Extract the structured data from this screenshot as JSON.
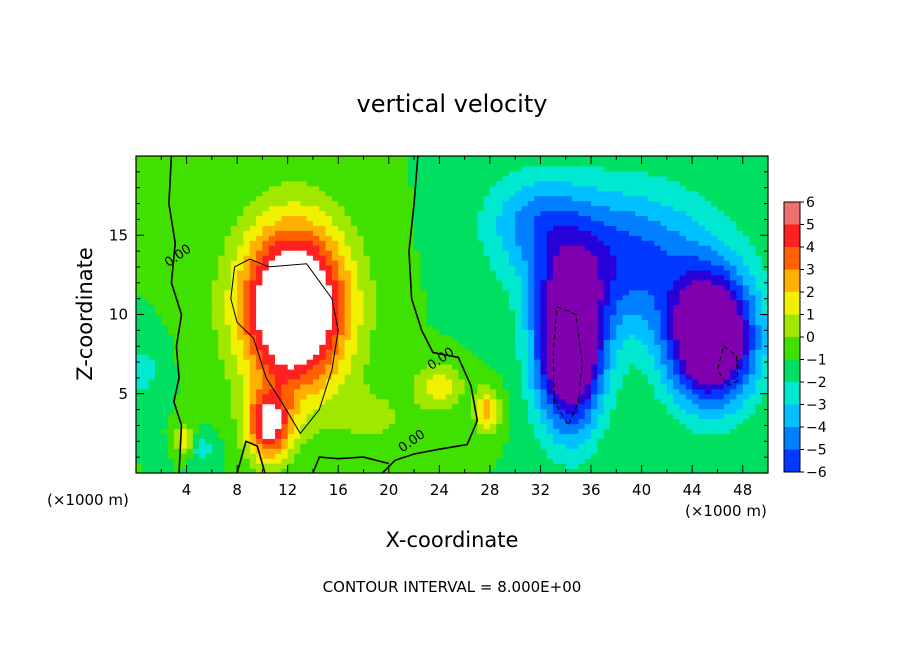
{
  "chart_data": {
    "type": "heatmap",
    "title": "vertical velocity",
    "xlabel": "X-coordinate",
    "ylabel": "Z-coordinate",
    "x_unit": "(×1000 m)",
    "y_unit": "(×1000 m)",
    "x_ticks": [
      "4",
      "8",
      "12",
      "16",
      "20",
      "24",
      "28",
      "32",
      "36",
      "40",
      "44",
      "48"
    ],
    "y_ticks": [
      "5",
      "10",
      "15"
    ],
    "xlim": [
      0,
      50
    ],
    "ylim": [
      0,
      20
    ],
    "colorbar": {
      "ticks": [
        "6",
        "5",
        "4",
        "3",
        "2",
        "1",
        "0",
        "−1",
        "−2",
        "−3",
        "−4",
        "−5",
        "−6"
      ],
      "range": [
        -6,
        6
      ]
    },
    "contour_labels": [
      {
        "text": "0.00",
        "x": 3.5,
        "z": 13.5
      },
      {
        "text": "0.00",
        "x": 24.3,
        "z": 7.0
      },
      {
        "text": "0.00",
        "x": 22.0,
        "z": 1.8
      }
    ],
    "features": [
      {
        "name": "updraft core",
        "x": 13.0,
        "z": 9.5,
        "w": "> 6"
      },
      {
        "name": "downdraft core A",
        "x": 34.3,
        "z": 8.0,
        "w": "< -6"
      },
      {
        "name": "downdraft core B",
        "x": 45.5,
        "z": 8.0,
        "w": "< -6"
      }
    ],
    "footnote": "CONTOUR INTERVAL = 8.000E+00"
  },
  "colors": {
    "scale": [
      "#8000b0",
      "#2800d8",
      "#0038ff",
      "#0080ff",
      "#00c0ff",
      "#00e8d0",
      "#00e060",
      "#40e000",
      "#a0e800",
      "#f0f000",
      "#ffb000",
      "#ff6000",
      "#ff2020",
      "#f07070",
      "#ffffff"
    ]
  }
}
